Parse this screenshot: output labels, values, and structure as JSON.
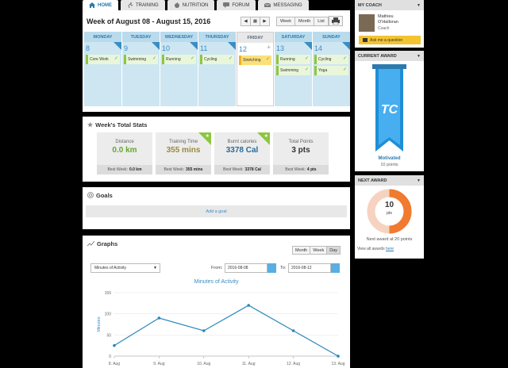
{
  "nav": {
    "tabs": [
      {
        "label": "HOME",
        "icon": "home-icon",
        "active": true
      },
      {
        "label": "TRAINING",
        "icon": "runner-icon",
        "active": false
      },
      {
        "label": "NUTRITION",
        "icon": "apple-icon",
        "active": false
      },
      {
        "label": "FORUM",
        "icon": "chat-icon",
        "active": false
      },
      {
        "label": "MESSAGING",
        "icon": "envelope-icon",
        "active": false
      }
    ]
  },
  "week": {
    "title": "Week of August 08 - August 15, 2016",
    "pager": {
      "prev": "◀",
      "calendar": "▦",
      "next": "▶"
    },
    "views": [
      "Week",
      "Month",
      "List"
    ],
    "days": [
      {
        "name": "MONDAY",
        "num": "8",
        "activities": [
          {
            "label": "Core Work"
          }
        ]
      },
      {
        "name": "TUESDAY",
        "num": "9",
        "activities": [
          {
            "label": "Swimming"
          }
        ]
      },
      {
        "name": "WEDNESDAY",
        "num": "10",
        "activities": [
          {
            "label": "Running"
          }
        ]
      },
      {
        "name": "THURSDAY",
        "num": "11",
        "activities": [
          {
            "label": "Cycling"
          }
        ]
      },
      {
        "name": "FRIDAY",
        "num": "12",
        "activities": [
          {
            "label": "Stretching"
          }
        ]
      },
      {
        "name": "SATURDAY",
        "num": "13",
        "activities": [
          {
            "label": "Running"
          },
          {
            "label": "Swimming"
          }
        ]
      },
      {
        "name": "SUNDAY",
        "num": "14",
        "activities": [
          {
            "label": "Cycling"
          },
          {
            "label": "Yoga"
          }
        ]
      }
    ]
  },
  "stats": {
    "title": "Week's Total Stats",
    "items": [
      {
        "label": "Distance",
        "value": "0.0 km",
        "best_label": "Best Week:",
        "best_value": "0.0 km",
        "color": "#6aa52c"
      },
      {
        "label": "Training Time",
        "value": "355 mins",
        "best_label": "Best Week:",
        "best_value": "355 mins",
        "color": "#9a8a3a"
      },
      {
        "label": "Burnt calories",
        "value": "3378 Cal",
        "best_label": "Best Week:",
        "best_value": "3378 Cal",
        "color": "#2a6a9a"
      },
      {
        "label": "Total Points",
        "value": "3 pts",
        "best_label": "Best Week:",
        "best_value": "4 pts",
        "color": "#333333"
      }
    ]
  },
  "goals": {
    "title": "Goals",
    "add_label": "Add a goal"
  },
  "graphs": {
    "title": "Graphs",
    "switch": [
      "Month",
      "Week",
      "Day"
    ],
    "metric": "Minutes of Activity",
    "from_label": "From:",
    "from_value": "2016-08-08",
    "to_label": "To:",
    "to_value": "2016-08-12"
  },
  "chart_data": {
    "type": "line",
    "title": "Minutes of Activity",
    "ylabel": "Minutes",
    "xlabel": "",
    "categories": [
      "8. Aug",
      "9. Aug",
      "10. Aug",
      "11. Aug",
      "12. Aug",
      "13. Aug"
    ],
    "values": [
      25,
      90,
      60,
      120,
      60,
      0
    ],
    "ylim": [
      0,
      150
    ],
    "yticks": [
      "0",
      "50",
      "100",
      "150"
    ],
    "color": "#2a86b8"
  },
  "coach": {
    "header": "MY COACH",
    "name_line1": "Mathieu",
    "name_line2": "O'Halloran",
    "role": "Coach",
    "ask_label": "Ask me a question"
  },
  "award": {
    "header": "CURRENT AWARD",
    "name": "Motivated",
    "points": "10 points",
    "badge_text": "TC"
  },
  "next_award": {
    "header": "NEXT AWARD",
    "value": "10",
    "unit": "pts",
    "progress": 0.5,
    "text": "Next award at 20 points",
    "all_text": "View all awards",
    "all_link": "here"
  }
}
